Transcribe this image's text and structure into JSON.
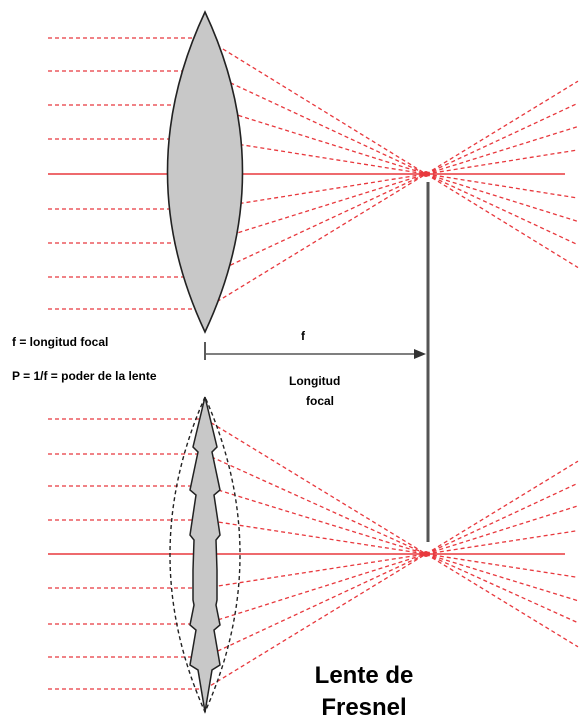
{
  "labels": {
    "focal_length_def": "f = longitud focal",
    "power_def": "P = 1/f = poder de la lente",
    "f_symbol": "f",
    "focal_length_caption_line1": "Longitud",
    "focal_length_caption_line2": "focal",
    "fresnel_title_line1": "Lente de",
    "fresnel_title_line2": "Fresnel"
  },
  "colors": {
    "ray": "#e8383d",
    "lens_fill": "#c8c8c8",
    "outline": "#222222",
    "focal_line": "#555555"
  }
}
